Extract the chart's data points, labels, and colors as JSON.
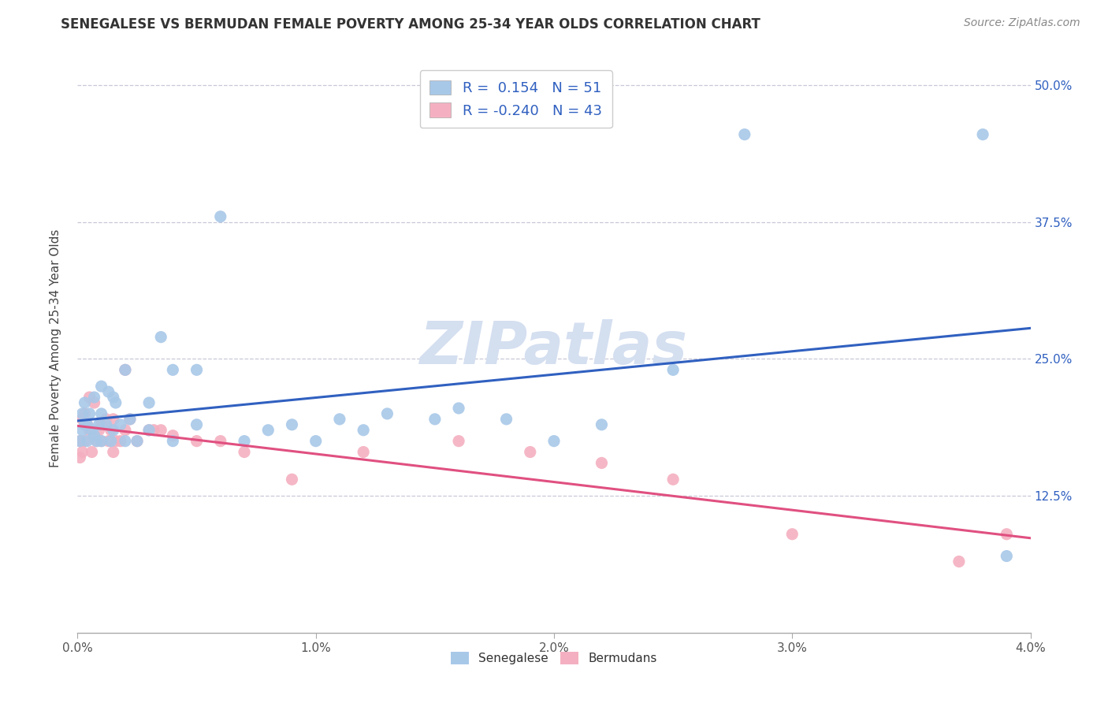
{
  "title": "SENEGALESE VS BERMUDAN FEMALE POVERTY AMONG 25-34 YEAR OLDS CORRELATION CHART",
  "source_text": "Source: ZipAtlas.com",
  "ylabel": "Female Poverty Among 25-34 Year Olds",
  "xlim": [
    0.0,
    0.04
  ],
  "ylim": [
    0.0,
    0.52
  ],
  "xticks": [
    0.0,
    0.01,
    0.02,
    0.03,
    0.04
  ],
  "xtick_labels": [
    "0.0%",
    "1.0%",
    "2.0%",
    "3.0%",
    "4.0%"
  ],
  "ytick_labels": [
    "12.5%",
    "25.0%",
    "37.5%",
    "50.0%"
  ],
  "ytick_values": [
    0.125,
    0.25,
    0.375,
    0.5
  ],
  "r_senegalese": 0.154,
  "n_senegalese": 51,
  "r_bermudans": -0.24,
  "n_bermudans": 43,
  "color_senegalese": "#a8c8e8",
  "color_bermudans": "#f4b0c0",
  "color_senegalese_line": "#3060c0",
  "color_bermudans_line": "#e05080",
  "background_color": "#ffffff",
  "grid_color": "#c8c8d8",
  "watermark_color": "#d4dff0",
  "senegalese_x": [
    0.0001,
    0.0002,
    0.0002,
    0.0003,
    0.0003,
    0.0004,
    0.0004,
    0.0005,
    0.0006,
    0.0007,
    0.0007,
    0.0008,
    0.0009,
    0.001,
    0.001,
    0.001,
    0.0012,
    0.0013,
    0.0014,
    0.0015,
    0.0015,
    0.0016,
    0.0018,
    0.002,
    0.002,
    0.0022,
    0.0025,
    0.003,
    0.003,
    0.0035,
    0.004,
    0.004,
    0.005,
    0.005,
    0.006,
    0.007,
    0.008,
    0.009,
    0.01,
    0.011,
    0.012,
    0.013,
    0.015,
    0.016,
    0.018,
    0.02,
    0.022,
    0.025,
    0.028,
    0.038,
    0.039
  ],
  "senegalese_y": [
    0.175,
    0.185,
    0.2,
    0.19,
    0.21,
    0.175,
    0.19,
    0.2,
    0.185,
    0.18,
    0.215,
    0.175,
    0.19,
    0.175,
    0.2,
    0.225,
    0.19,
    0.22,
    0.175,
    0.185,
    0.215,
    0.21,
    0.19,
    0.175,
    0.24,
    0.195,
    0.175,
    0.185,
    0.21,
    0.27,
    0.175,
    0.24,
    0.19,
    0.24,
    0.38,
    0.175,
    0.185,
    0.19,
    0.175,
    0.195,
    0.185,
    0.2,
    0.195,
    0.205,
    0.195,
    0.175,
    0.19,
    0.24,
    0.455,
    0.455,
    0.07
  ],
  "bermudans_x": [
    0.0001,
    0.0001,
    0.0002,
    0.0002,
    0.0003,
    0.0003,
    0.0004,
    0.0005,
    0.0005,
    0.0006,
    0.0007,
    0.0007,
    0.0008,
    0.0009,
    0.001,
    0.001,
    0.0012,
    0.0013,
    0.0014,
    0.0015,
    0.0015,
    0.0016,
    0.0018,
    0.002,
    0.002,
    0.0022,
    0.0025,
    0.003,
    0.0032,
    0.0035,
    0.004,
    0.005,
    0.006,
    0.007,
    0.009,
    0.012,
    0.016,
    0.019,
    0.022,
    0.025,
    0.03,
    0.037,
    0.039
  ],
  "bermudans_y": [
    0.175,
    0.16,
    0.195,
    0.165,
    0.2,
    0.175,
    0.19,
    0.185,
    0.215,
    0.165,
    0.18,
    0.21,
    0.175,
    0.185,
    0.19,
    0.175,
    0.195,
    0.175,
    0.185,
    0.195,
    0.165,
    0.175,
    0.175,
    0.24,
    0.185,
    0.195,
    0.175,
    0.185,
    0.185,
    0.185,
    0.18,
    0.175,
    0.175,
    0.165,
    0.14,
    0.165,
    0.175,
    0.165,
    0.155,
    0.14,
    0.09,
    0.065,
    0.09
  ]
}
